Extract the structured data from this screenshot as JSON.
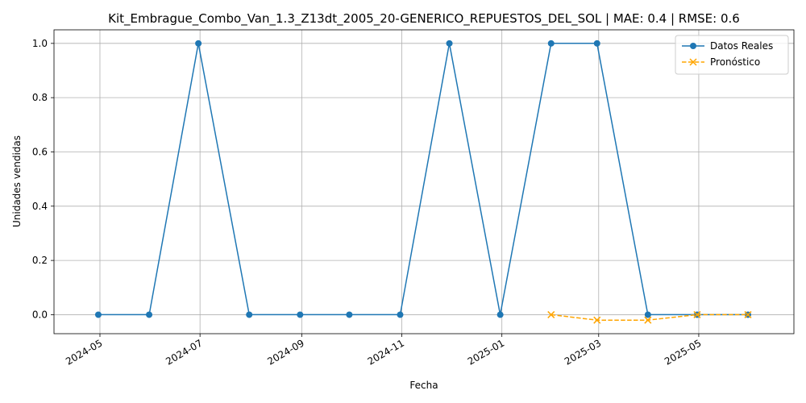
{
  "chart_data": {
    "type": "line",
    "title": "Kit_Embrague_Combo_Van_1.3_Z13dt_2005_20-GENERICO_REPUESTOS_DEL_SOL | MAE: 0.4 | RMSE: 0.6",
    "xlabel": "Fecha",
    "ylabel": "Unidades vendidas",
    "xlim": [
      "2024-04-03",
      "2025-06-28"
    ],
    "ylim": [
      -0.07,
      1.05
    ],
    "x_ticks": [
      "2024-05",
      "2024-07",
      "2024-09",
      "2024-11",
      "2025-01",
      "2025-03",
      "2025-05"
    ],
    "y_ticks": [
      "0.0",
      "0.2",
      "0.4",
      "0.6",
      "0.8",
      "1.0"
    ],
    "y_tick_values": [
      0.0,
      0.2,
      0.4,
      0.6,
      0.8,
      1.0
    ],
    "grid": true,
    "legend_position": "top-right",
    "series": [
      {
        "name": "Datos Reales",
        "color": "#1f77b4",
        "marker": "circle",
        "line": "solid",
        "x": [
          "2024-04-30",
          "2024-05-31",
          "2024-06-30",
          "2024-07-31",
          "2024-08-31",
          "2024-09-30",
          "2024-10-31",
          "2024-11-30",
          "2024-12-31",
          "2025-01-31",
          "2025-02-28",
          "2025-03-31",
          "2025-04-30",
          "2025-05-31"
        ],
        "y": [
          0,
          0,
          1,
          0,
          0,
          0,
          0,
          1,
          0,
          1,
          1,
          0,
          0,
          0
        ]
      },
      {
        "name": "Pronóstico",
        "color": "#ffa500",
        "marker": "x",
        "line": "dashed",
        "x": [
          "2025-01-31",
          "2025-02-28",
          "2025-03-31",
          "2025-04-30",
          "2025-05-31"
        ],
        "y": [
          0.0,
          -0.02,
          -0.02,
          0.0,
          0.0
        ]
      }
    ]
  }
}
